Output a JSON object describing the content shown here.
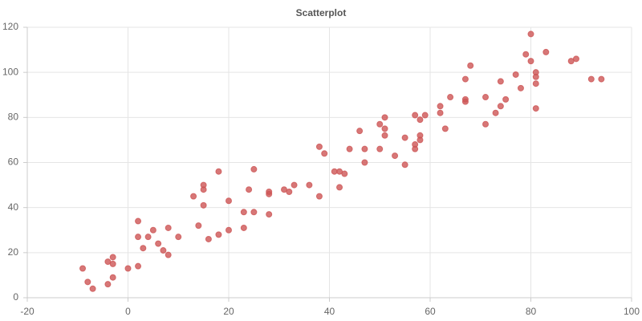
{
  "chart_data": {
    "type": "scatter",
    "title": "Scatterplot",
    "x": [
      -9,
      -8,
      -7,
      -4,
      -4,
      -3,
      -3,
      -3,
      0,
      2,
      2,
      2,
      3,
      4,
      5,
      6,
      7,
      8,
      8,
      10,
      13,
      14,
      15,
      15,
      15,
      16,
      18,
      18,
      20,
      20,
      23,
      23,
      24,
      25,
      25,
      28,
      28,
      28,
      31,
      32,
      33,
      36,
      38,
      38,
      39,
      41,
      42,
      42,
      43,
      44,
      46,
      47,
      47,
      50,
      50,
      51,
      51,
      51,
      53,
      55,
      55,
      57,
      57,
      57,
      58,
      58,
      58,
      59,
      62,
      62,
      63,
      64,
      67,
      67,
      67,
      68,
      71,
      71,
      73,
      74,
      74,
      75,
      77,
      78,
      79,
      80,
      80,
      81,
      81,
      81,
      81,
      83,
      88,
      89,
      92,
      94
    ],
    "values": [
      13,
      7,
      4,
      16,
      6,
      18,
      15,
      9,
      13,
      34,
      27,
      14,
      22,
      27,
      30,
      24,
      21,
      31,
      19,
      27,
      45,
      32,
      50,
      48,
      41,
      26,
      56,
      28,
      43,
      30,
      38,
      31,
      48,
      57,
      38,
      47,
      46,
      37,
      48,
      47,
      50,
      50,
      67,
      45,
      64,
      56,
      56,
      49,
      55,
      66,
      74,
      66,
      60,
      66,
      77,
      80,
      75,
      72,
      63,
      71,
      59,
      81,
      68,
      66,
      79,
      72,
      70,
      81,
      85,
      82,
      75,
      89,
      97,
      88,
      87,
      103,
      89,
      77,
      82,
      96,
      85,
      88,
      99,
      93,
      108,
      117,
      105,
      100,
      98,
      95,
      84,
      109,
      105,
      106,
      97,
      97
    ],
    "color": "rgba(205,85,85,0.8)",
    "xlim": [
      -20,
      100
    ],
    "xticks": [
      -20,
      0,
      20,
      40,
      60,
      80,
      100
    ],
    "ylim": [
      0,
      120
    ],
    "yticks": [
      0,
      20,
      40,
      60,
      80,
      100,
      120
    ],
    "grid": true
  }
}
